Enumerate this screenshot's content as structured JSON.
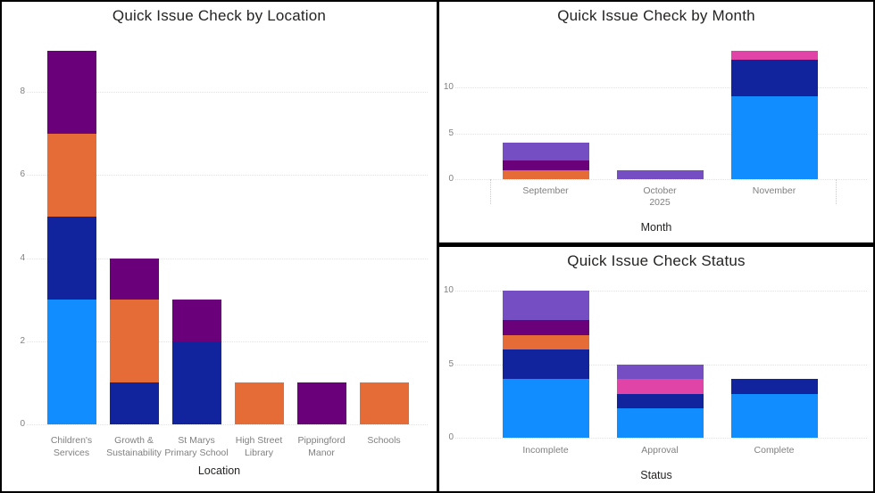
{
  "window": {
    "background": "#000000",
    "panel_background": "#ffffff",
    "title_color": "#252423",
    "axis_text_color": "#808080"
  },
  "palette": {
    "light_blue": "#118DFF",
    "dark_blue": "#12239E",
    "orange": "#E66C37",
    "dark_purple": "#6B007B",
    "pink": "#E044A7",
    "violet": "#744EC2"
  },
  "chart_data": [
    {
      "type": "bar",
      "stacked": true,
      "title": "Quick Issue Check by Location",
      "xlabel": "Location",
      "ylabel": "",
      "ylim": [
        0,
        9.3
      ],
      "y_ticks": [
        0,
        2,
        4,
        6,
        8
      ],
      "grid": "horizontal-dotted",
      "legend": "none",
      "categories": [
        "Children's Services",
        "Growth & Sustainability",
        "St Marys Primary School",
        "High Street Library",
        "Pippingford Manor",
        "Schools"
      ],
      "series": [
        {
          "name": "light-blue segment",
          "color": "#118DFF",
          "values": [
            3,
            0,
            0,
            0,
            0,
            0
          ]
        },
        {
          "name": "dark-blue segment",
          "color": "#12239E",
          "values": [
            2,
            1,
            2,
            0,
            0,
            0
          ]
        },
        {
          "name": "orange segment",
          "color": "#E66C37",
          "values": [
            2,
            2,
            0,
            1,
            0,
            1
          ]
        },
        {
          "name": "dark-purple segment",
          "color": "#6B007B",
          "values": [
            2,
            1,
            1,
            0,
            1,
            0
          ]
        }
      ],
      "totals": [
        9,
        4,
        3,
        1,
        1,
        1
      ]
    },
    {
      "type": "bar",
      "stacked": true,
      "title": "Quick Issue Check by Month",
      "xlabel": "Month",
      "ylabel": "",
      "ylim": [
        0,
        14.5
      ],
      "y_ticks": [
        0,
        5,
        10
      ],
      "grid": "horizontal-dotted",
      "legend": "none",
      "categories": [
        "September",
        "October",
        "November"
      ],
      "year_label": "2025",
      "series": [
        {
          "name": "light-blue segment",
          "color": "#118DFF",
          "values": [
            0,
            0,
            9
          ]
        },
        {
          "name": "dark-blue segment",
          "color": "#12239E",
          "values": [
            0,
            0,
            4
          ]
        },
        {
          "name": "orange segment",
          "color": "#E66C37",
          "values": [
            1,
            0,
            0
          ]
        },
        {
          "name": "dark-purple segment",
          "color": "#6B007B",
          "values": [
            1,
            0,
            0
          ]
        },
        {
          "name": "pink segment",
          "color": "#E044A7",
          "values": [
            0,
            0,
            1
          ]
        },
        {
          "name": "violet segment",
          "color": "#744EC2",
          "values": [
            2,
            1,
            0
          ]
        }
      ],
      "totals": [
        4,
        1,
        14
      ]
    },
    {
      "type": "bar",
      "stacked": true,
      "title": "Quick Issue Check Status",
      "xlabel": "Status",
      "ylabel": "",
      "ylim": [
        0,
        10.6
      ],
      "y_ticks": [
        0,
        5,
        10
      ],
      "grid": "horizontal-dotted",
      "legend": "none",
      "categories": [
        "Incomplete",
        "Approval",
        "Complete"
      ],
      "series": [
        {
          "name": "light-blue segment",
          "color": "#118DFF",
          "values": [
            4,
            2,
            3
          ]
        },
        {
          "name": "dark-blue segment",
          "color": "#12239E",
          "values": [
            2,
            1,
            1
          ]
        },
        {
          "name": "orange segment",
          "color": "#E66C37",
          "values": [
            1,
            0,
            0
          ]
        },
        {
          "name": "dark-purple segment",
          "color": "#6B007B",
          "values": [
            1,
            0,
            0
          ]
        },
        {
          "name": "pink segment",
          "color": "#E044A7",
          "values": [
            0,
            1,
            0
          ]
        },
        {
          "name": "violet segment",
          "color": "#744EC2",
          "values": [
            2,
            1,
            0
          ]
        }
      ],
      "totals": [
        10,
        5,
        4
      ]
    }
  ]
}
